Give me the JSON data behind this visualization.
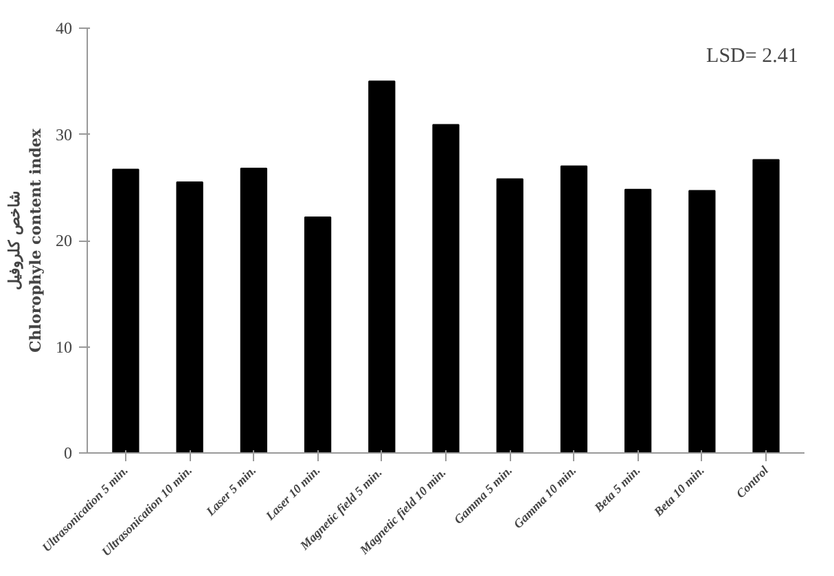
{
  "chart_data": {
    "type": "bar",
    "ylabel": "شاخص کلروفیل\nChlorophyle content index",
    "categories": [
      "Ultrasonication 5 min.",
      "Ultrasonication 10 min.",
      "Laser 5 min.",
      "Laser 10 min.",
      "Magnetic field 5  min.",
      "Magnetic field 10  min.",
      "Gamma 5 min.",
      "Gamma 10 min.",
      "Beta 5 min.",
      "Beta 10 min.",
      "Control"
    ],
    "values": [
      26.7,
      25.5,
      26.8,
      22.2,
      35.0,
      30.9,
      25.8,
      27.0,
      24.8,
      24.7,
      27.6
    ],
    "color": "#000000",
    "ylim": [
      0,
      40
    ],
    "yticks": [
      0,
      10,
      20,
      30,
      40
    ],
    "grid": false,
    "annotations": [
      "LSD= 2.41"
    ]
  }
}
